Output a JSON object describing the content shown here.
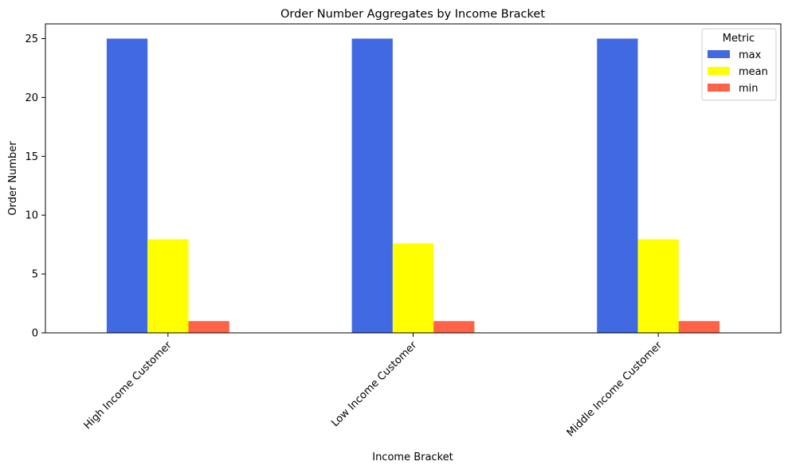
{
  "chart_data": {
    "type": "bar",
    "title": "Order Number Aggregates by Income Bracket",
    "xlabel": "Income Bracket",
    "ylabel": "Order Number",
    "categories": [
      "High Income Customer",
      "Low Income Customer",
      "Middle Income Customer"
    ],
    "series": [
      {
        "name": "max",
        "color": "#4169E1",
        "values": [
          25,
          25,
          25
        ]
      },
      {
        "name": "mean",
        "color": "#FFFF00",
        "values": [
          7.95,
          7.6,
          7.95
        ]
      },
      {
        "name": "min",
        "color": "#FF6347",
        "values": [
          1,
          1,
          1
        ]
      }
    ],
    "ylim": [
      0,
      26.25
    ],
    "yticks": [
      0,
      5,
      10,
      15,
      20,
      25
    ],
    "grid": false,
    "legend": {
      "title": "Metric",
      "placement": "top-right"
    }
  }
}
